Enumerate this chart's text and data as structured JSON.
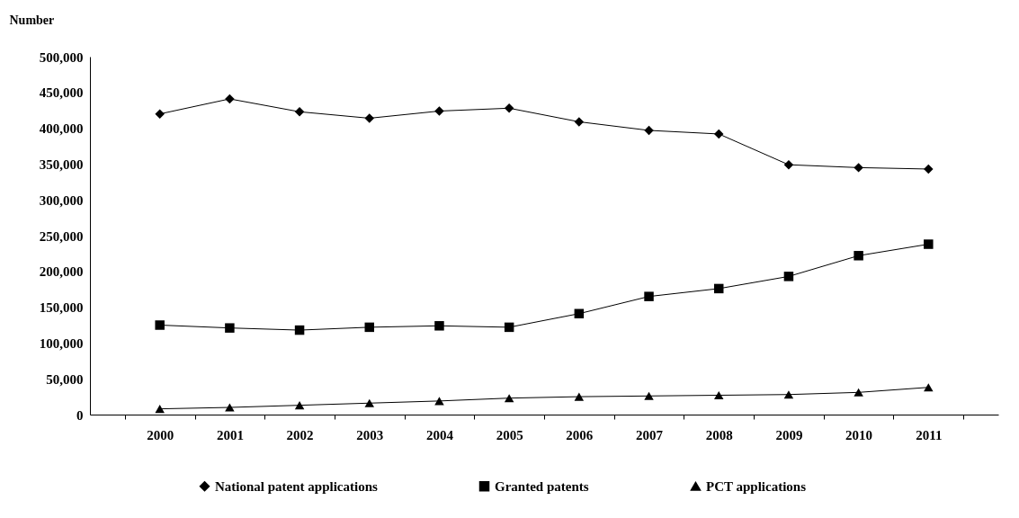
{
  "chart_data": {
    "type": "line",
    "ylabel": "Number",
    "categories": [
      "2000",
      "2001",
      "2002",
      "2003",
      "2004",
      "2005",
      "2006",
      "2007",
      "2008",
      "2009",
      "2010",
      "2011"
    ],
    "series": [
      {
        "name": "National patent applications",
        "color": "#000000",
        "marker": "diamond",
        "values": [
          420000,
          441000,
          423000,
          414000,
          424000,
          428000,
          409000,
          397000,
          392000,
          349000,
          345000,
          343000
        ]
      },
      {
        "name": "Granted patents",
        "color": "#000000",
        "marker": "square",
        "values": [
          125000,
          121000,
          118000,
          122000,
          124000,
          122000,
          141000,
          165000,
          176000,
          193000,
          222000,
          238000
        ]
      },
      {
        "name": "PCT applications",
        "color": "#000000",
        "marker": "triangle",
        "values": [
          8000,
          10000,
          13000,
          16000,
          19000,
          23000,
          25000,
          26000,
          27000,
          28000,
          31000,
          38000
        ]
      }
    ],
    "ylim": [
      0,
      500000
    ],
    "yticks": [
      0,
      {
        "value": 50000,
        "label": "50,000"
      },
      {
        "value": 100000,
        "label": "100,000"
      },
      {
        "value": 150000,
        "label": "150,000"
      },
      {
        "value": 200000,
        "label": "200,000"
      },
      {
        "value": 250000,
        "label": "250,000"
      },
      {
        "value": 300000,
        "label": "300,000"
      },
      {
        "value": 350000,
        "label": "350,000"
      },
      {
        "value": 400000,
        "label": "400,000"
      },
      {
        "value": 450000,
        "label": "450,000"
      },
      {
        "value": 500000,
        "label": "500,000"
      }
    ],
    "grid": false,
    "legend": "bottom",
    "line_style": "solid"
  }
}
